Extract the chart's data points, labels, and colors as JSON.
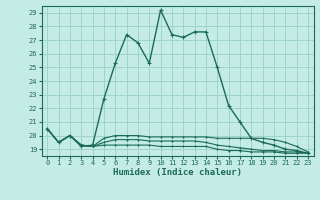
{
  "xlabel": "Humidex (Indice chaleur)",
  "bg_color": "#c5ebe6",
  "grid_color": "#9ed4cd",
  "line_color": "#1a6b5a",
  "xlim": [
    -0.5,
    23.5
  ],
  "ylim": [
    18.5,
    29.5
  ],
  "xticks": [
    0,
    1,
    2,
    3,
    4,
    5,
    6,
    7,
    8,
    9,
    10,
    11,
    12,
    13,
    14,
    15,
    16,
    17,
    18,
    19,
    20,
    21,
    22,
    23
  ],
  "yticks": [
    19,
    20,
    21,
    22,
    23,
    24,
    25,
    26,
    27,
    28,
    29
  ],
  "series": [
    [
      20.5,
      19.5,
      20.0,
      19.2,
      19.3,
      22.7,
      25.3,
      27.4,
      26.8,
      25.3,
      29.2,
      27.4,
      27.2,
      27.6,
      27.6,
      25.0,
      22.2,
      21.0,
      19.8,
      19.5,
      19.3,
      19.0,
      18.9,
      18.7
    ],
    [
      20.5,
      19.5,
      20.0,
      19.3,
      19.2,
      19.8,
      20.0,
      20.0,
      20.0,
      19.9,
      19.9,
      19.9,
      19.9,
      19.9,
      19.9,
      19.8,
      19.8,
      19.8,
      19.8,
      19.8,
      19.7,
      19.5,
      19.2,
      18.8
    ],
    [
      20.5,
      19.5,
      20.0,
      19.3,
      19.2,
      19.5,
      19.7,
      19.7,
      19.7,
      19.6,
      19.6,
      19.6,
      19.6,
      19.6,
      19.5,
      19.3,
      19.2,
      19.1,
      19.0,
      18.9,
      18.9,
      18.8,
      18.8,
      18.7
    ],
    [
      20.5,
      19.5,
      20.0,
      19.3,
      19.2,
      19.3,
      19.3,
      19.3,
      19.3,
      19.3,
      19.2,
      19.2,
      19.2,
      19.2,
      19.2,
      19.0,
      18.9,
      18.9,
      18.8,
      18.8,
      18.8,
      18.7,
      18.7,
      18.7
    ]
  ]
}
